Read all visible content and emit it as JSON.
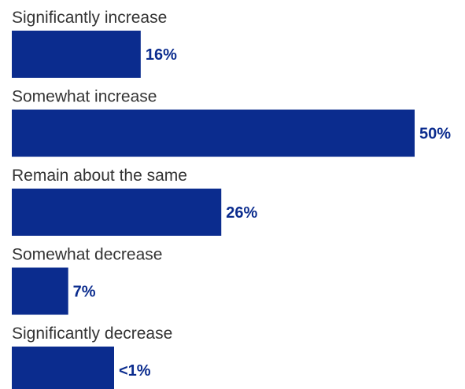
{
  "chart_data": {
    "type": "bar",
    "orientation": "horizontal",
    "categories": [
      "Significantly increase",
      "Somewhat increase",
      "Remain about the same",
      "Somewhat decrease",
      "Significantly decrease"
    ],
    "values": [
      16,
      50,
      26,
      7,
      1
    ],
    "value_labels": [
      "16%",
      "50%",
      "26%",
      "7%",
      "<1%"
    ],
    "unit": "%",
    "xlim": [
      0,
      50
    ],
    "grid": false,
    "legend": "none",
    "bar_color": "#0b2c8e",
    "label_color": "#0b2c8e",
    "text_color": "#333333"
  }
}
